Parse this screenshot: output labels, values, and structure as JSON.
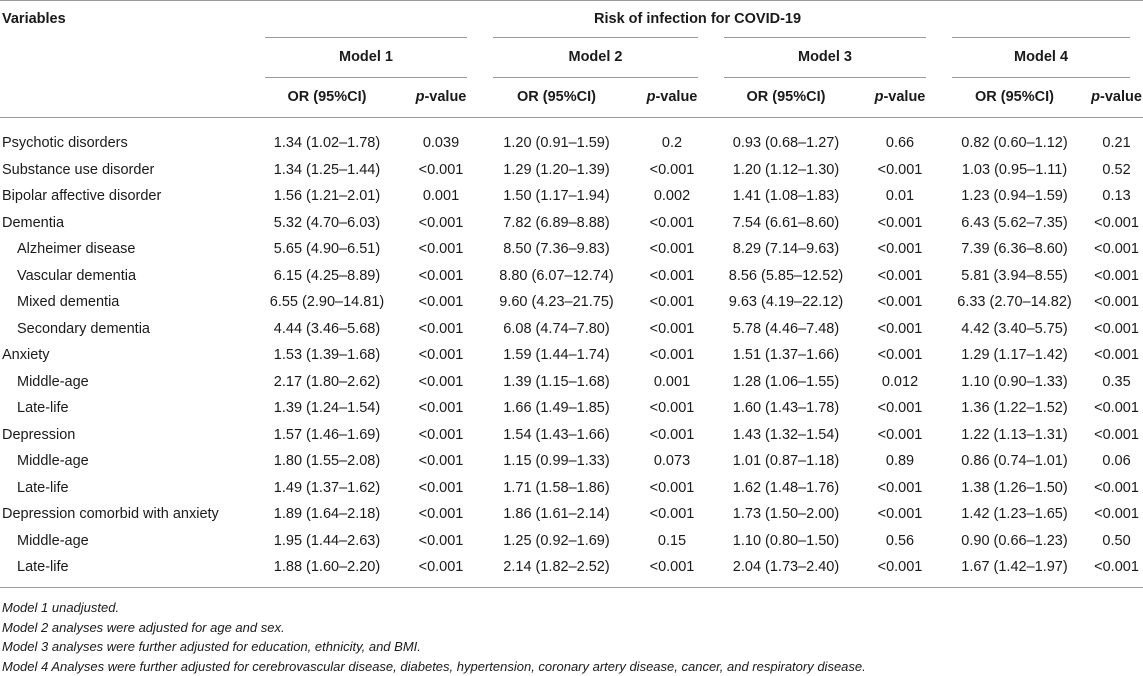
{
  "header": {
    "variables_label": "Variables",
    "risk_title": "Risk of infection for COVID-19",
    "models": [
      "Model 1",
      "Model 2",
      "Model 3",
      "Model 4"
    ],
    "or_label": "OR (95%CI)",
    "p_label_italic": "p",
    "p_label_rest": "-value"
  },
  "rows": [
    {
      "variable": "Psychotic disorders",
      "sub": false,
      "values": [
        "1.34 (1.02–1.78)",
        "0.039",
        "1.20 (0.91–1.59)",
        "0.2",
        "0.93 (0.68–1.27)",
        "0.66",
        "0.82 (0.60–1.12)",
        "0.21"
      ]
    },
    {
      "variable": "Substance use disorder",
      "sub": false,
      "values": [
        "1.34 (1.25–1.44)",
        "<0.001",
        "1.29 (1.20–1.39)",
        "<0.001",
        "1.20 (1.12–1.30)",
        "<0.001",
        "1.03 (0.95–1.11)",
        "0.52"
      ]
    },
    {
      "variable": "Bipolar affective disorder",
      "sub": false,
      "values": [
        "1.56 (1.21–2.01)",
        "0.001",
        "1.50 (1.17–1.94)",
        "0.002",
        "1.41 (1.08–1.83)",
        "0.01",
        "1.23 (0.94–1.59)",
        "0.13"
      ]
    },
    {
      "variable": "Dementia",
      "sub": false,
      "values": [
        "5.32 (4.70–6.03)",
        "<0.001",
        "7.82 (6.89–8.88)",
        "<0.001",
        "7.54 (6.61–8.60)",
        "<0.001",
        "6.43 (5.62–7.35)",
        "<0.001"
      ]
    },
    {
      "variable": "Alzheimer disease",
      "sub": true,
      "values": [
        "5.65 (4.90–6.51)",
        "<0.001",
        "8.50 (7.36–9.83)",
        "<0.001",
        "8.29 (7.14–9.63)",
        "<0.001",
        "7.39 (6.36–8.60)",
        "<0.001"
      ]
    },
    {
      "variable": "Vascular dementia",
      "sub": true,
      "values": [
        "6.15 (4.25–8.89)",
        "<0.001",
        "8.80 (6.07–12.74)",
        "<0.001",
        "8.56 (5.85–12.52)",
        "<0.001",
        "5.81 (3.94–8.55)",
        "<0.001"
      ]
    },
    {
      "variable": "Mixed dementia",
      "sub": true,
      "values": [
        "6.55 (2.90–14.81)",
        "<0.001",
        "9.60 (4.23–21.75)",
        "<0.001",
        "9.63 (4.19–22.12)",
        "<0.001",
        "6.33 (2.70–14.82)",
        "<0.001"
      ]
    },
    {
      "variable": "Secondary dementia",
      "sub": true,
      "values": [
        "4.44 (3.46–5.68)",
        "<0.001",
        "6.08 (4.74–7.80)",
        "<0.001",
        "5.78 (4.46–7.48)",
        "<0.001",
        "4.42 (3.40–5.75)",
        "<0.001"
      ]
    },
    {
      "variable": "Anxiety",
      "sub": false,
      "values": [
        "1.53 (1.39–1.68)",
        "<0.001",
        "1.59 (1.44–1.74)",
        "<0.001",
        "1.51 (1.37–1.66)",
        "<0.001",
        "1.29 (1.17–1.42)",
        "<0.001"
      ]
    },
    {
      "variable": "Middle-age",
      "sub": true,
      "values": [
        "2.17 (1.80–2.62)",
        "<0.001",
        "1.39 (1.15–1.68)",
        "0.001",
        "1.28 (1.06–1.55)",
        "0.012",
        "1.10 (0.90–1.33)",
        "0.35"
      ]
    },
    {
      "variable": "Late-life",
      "sub": true,
      "values": [
        "1.39 (1.24–1.54)",
        "<0.001",
        "1.66 (1.49–1.85)",
        "<0.001",
        "1.60 (1.43–1.78)",
        "<0.001",
        "1.36 (1.22–1.52)",
        "<0.001"
      ]
    },
    {
      "variable": "Depression",
      "sub": false,
      "values": [
        "1.57 (1.46–1.69)",
        "<0.001",
        "1.54 (1.43–1.66)",
        "<0.001",
        "1.43 (1.32–1.54)",
        "<0.001",
        "1.22 (1.13–1.31)",
        "<0.001"
      ]
    },
    {
      "variable": "Middle-age",
      "sub": true,
      "values": [
        "1.80 (1.55–2.08)",
        "<0.001",
        "1.15 (0.99–1.33)",
        "0.073",
        "1.01 (0.87–1.18)",
        "0.89",
        "0.86 (0.74–1.01)",
        "0.06"
      ]
    },
    {
      "variable": "Late-life",
      "sub": true,
      "values": [
        "1.49 (1.37–1.62)",
        "<0.001",
        "1.71 (1.58–1.86)",
        "<0.001",
        "1.62 (1.48–1.76)",
        "<0.001",
        "1.38 (1.26–1.50)",
        "<0.001"
      ]
    },
    {
      "variable": "Depression comorbid with anxiety",
      "sub": false,
      "values": [
        "1.89 (1.64–2.18)",
        "<0.001",
        "1.86 (1.61–2.14)",
        "<0.001",
        "1.73 (1.50–2.00)",
        "<0.001",
        "1.42 (1.23–1.65)",
        "<0.001"
      ]
    },
    {
      "variable": "Middle-age",
      "sub": true,
      "values": [
        "1.95 (1.44–2.63)",
        "<0.001",
        "1.25 (0.92–1.69)",
        "0.15",
        "1.10 (0.80–1.50)",
        "0.56",
        "0.90 (0.66–1.23)",
        "0.50"
      ]
    },
    {
      "variable": "Late-life",
      "sub": true,
      "values": [
        "1.88 (1.60–2.20)",
        "<0.001",
        "2.14 (1.82–2.52)",
        "<0.001",
        "2.04 (1.73–2.40)",
        "<0.001",
        "1.67 (1.42–1.97)",
        "<0.001"
      ]
    }
  ],
  "notes": [
    "Model 1 unadjusted.",
    "Model 2 analyses were adjusted for age and sex.",
    "Model 3 analyses were further adjusted for education, ethnicity, and BMI.",
    "Model 4 Analyses were further adjusted for cerebrovascular disease, diabetes, hypertension, coronary artery disease, cancer, and respiratory disease."
  ]
}
